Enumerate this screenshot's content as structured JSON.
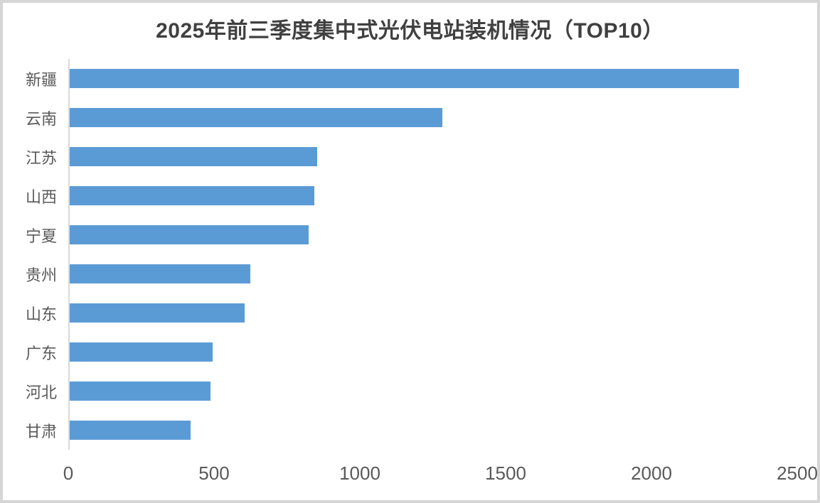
{
  "frame": {
    "background_color": "#ffffff",
    "border_color": "#d6d6d6"
  },
  "chart_data": {
    "type": "bar",
    "orientation": "horizontal",
    "title": "2025年前三季度集中式光伏电站装机情况（TOP10）",
    "categories": [
      "新疆",
      "云南",
      "江苏",
      "山西",
      "宁夏",
      "贵州",
      "山东",
      "广东",
      "河北",
      "甘肃"
    ],
    "values": [
      2300,
      1280,
      850,
      840,
      820,
      620,
      600,
      490,
      485,
      415
    ],
    "xlabel": "",
    "ylabel": "",
    "xlim": [
      0,
      2500
    ],
    "x_ticks": [
      0,
      500,
      1000,
      1500,
      2000,
      2500
    ],
    "grid": false,
    "legend": false,
    "bar_color": "#5B9BD5",
    "title_color": "#404040",
    "tick_label_color": "#595959",
    "axis_line_color": "#d9d9d9"
  }
}
